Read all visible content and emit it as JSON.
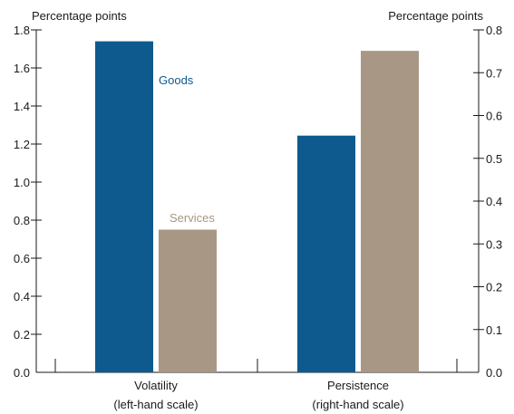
{
  "chart_data": {
    "type": "bar",
    "left_axis": {
      "unit_label": "Percentage points",
      "ylim": [
        0,
        1.8
      ],
      "ticks": [
        "0.0",
        "0.2",
        "0.4",
        "0.6",
        "0.8",
        "1.0",
        "1.2",
        "1.4",
        "1.6",
        "1.8"
      ],
      "tick_values": [
        0,
        0.2,
        0.4,
        0.6,
        0.8,
        1.0,
        1.2,
        1.4,
        1.6,
        1.8
      ]
    },
    "right_axis": {
      "unit_label": "Percentage points",
      "ylim": [
        0,
        0.8
      ],
      "ticks": [
        "0.0",
        "0.1",
        "0.2",
        "0.3",
        "0.4",
        "0.5",
        "0.6",
        "0.7",
        "0.8"
      ],
      "tick_values": [
        0,
        0.1,
        0.2,
        0.3,
        0.4,
        0.5,
        0.6,
        0.7,
        0.8
      ]
    },
    "categories": [
      {
        "line1": "Volatility",
        "line2": "(left-hand scale)",
        "axis": "left"
      },
      {
        "line1": "Persistence",
        "line2": "(right-hand scale)",
        "axis": "right"
      }
    ],
    "series": [
      {
        "name": "Goods",
        "color": "#0e5a8e",
        "values": [
          1.74,
          0.553
        ]
      },
      {
        "name": "Services",
        "color": "#a79784",
        "values": [
          0.75,
          0.751
        ]
      }
    ],
    "grid": false,
    "legend": "inline labels next to bars"
  }
}
